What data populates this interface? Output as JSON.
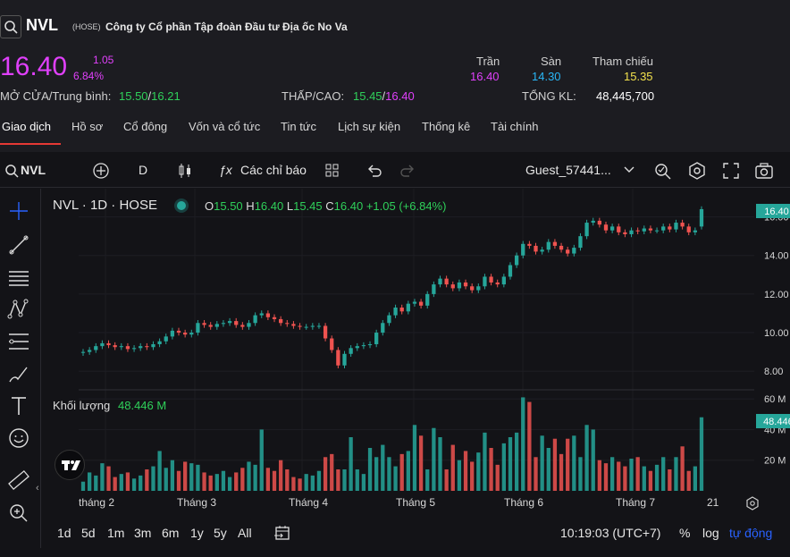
{
  "header": {
    "ticker": "NVL",
    "exchange": "(HOSE)",
    "company": "Công ty Cổ phần Tập đoàn Đầu tư Địa ốc No Va",
    "price": "16.40",
    "change": "1.05",
    "change_pct": "6.84%",
    "open_avg_label": "MỞ CỬA/Trung bình:",
    "open": "15.50",
    "avg": "16.21",
    "low_high_label": "THẤP/CAO:",
    "low": "15.45",
    "high": "16.40",
    "ceiling_label": "Trần",
    "ceiling": "16.40",
    "floor_label": "Sàn",
    "floor": "14.30",
    "ref_label": "Tham chiếu",
    "ref": "15.35",
    "total_vol_label": "TỔNG KL:",
    "total_vol": "48,445,700"
  },
  "tabs": [
    "Giao dịch",
    "Hồ sơ",
    "Cổ đông",
    "Vốn và cổ tức",
    "Tin tức",
    "Lịch sự kiện",
    "Thống kê",
    "Tài chính"
  ],
  "toolbar": {
    "symbol": "NVL",
    "interval": "D",
    "indicators": "Các chỉ báo",
    "user": "Guest_57441..."
  },
  "legend": {
    "title": "NVL · 1D · HOSE",
    "o_label": "O",
    "o": "15.50",
    "h_label": "H",
    "h": "16.40",
    "l_label": "L",
    "l": "15.45",
    "c_label": "C",
    "c": "16.40",
    "chg": "+1.05 (+6.84%)",
    "vol_label": "Khối lượng",
    "vol": "48.446 M"
  },
  "chart_data": {
    "type": "candlestick",
    "price_axis": [
      "16.00",
      "14.00",
      "12.00",
      "10.00",
      "8.00"
    ],
    "price_range": [
      7.5,
      17.0
    ],
    "volume_axis": [
      "60 M",
      "40 M",
      "20 M"
    ],
    "volume_range": [
      0,
      63
    ],
    "last_price_tag": "16.40",
    "last_volume_tag": "48.446 M",
    "x_labels": [
      "tháng 2",
      "Tháng 3",
      "Tháng 4",
      "Tháng 5",
      "Tháng 6",
      "Tháng 7",
      "21"
    ],
    "up_color": "#26a69a",
    "down_color": "#ef5350",
    "closes": [
      9.0,
      9.1,
      9.3,
      9.45,
      9.35,
      9.25,
      9.3,
      9.15,
      9.2,
      9.3,
      9.25,
      9.4,
      9.55,
      9.8,
      10.1,
      10.0,
      9.9,
      10.0,
      10.5,
      10.4,
      10.3,
      10.45,
      10.5,
      10.6,
      10.4,
      10.3,
      10.5,
      10.9,
      11.0,
      10.8,
      10.7,
      10.5,
      10.45,
      10.35,
      10.3,
      10.3,
      10.35,
      10.35,
      9.7,
      9.1,
      8.3,
      8.9,
      9.2,
      9.3,
      9.35,
      9.4,
      10.0,
      10.5,
      10.9,
      11.3,
      11.1,
      11.5,
      11.6,
      11.4,
      12.0,
      12.5,
      12.8,
      12.5,
      12.3,
      12.6,
      12.4,
      12.2,
      12.4,
      12.9,
      12.6,
      12.5,
      12.9,
      13.5,
      14.0,
      14.6,
      14.5,
      14.2,
      14.3,
      14.7,
      14.5,
      14.3,
      14.1,
      14.4,
      15.0,
      15.7,
      15.8,
      15.6,
      15.3,
      15.5,
      15.2,
      15.1,
      15.3,
      15.25,
      15.4,
      15.3,
      15.3,
      15.5,
      15.35,
      15.7,
      15.5,
      15.2,
      15.3,
      16.4
    ],
    "volumes": [
      6,
      12,
      10,
      18,
      16,
      9,
      11,
      12,
      8,
      10,
      14,
      16,
      26,
      15,
      20,
      13,
      19,
      18,
      17,
      12,
      10,
      11,
      13,
      9,
      12,
      15,
      19,
      17,
      40,
      15,
      13,
      20,
      14,
      9,
      8,
      11,
      10,
      13,
      22,
      24,
      14,
      14,
      35,
      14,
      11,
      28,
      22,
      30,
      22,
      16,
      24,
      26,
      43,
      36,
      14,
      41,
      35,
      14,
      30,
      20,
      26,
      19,
      25,
      38,
      28,
      17,
      31,
      35,
      38,
      61,
      58,
      22,
      36,
      28,
      34,
      24,
      34,
      36,
      22,
      43,
      40,
      20,
      18,
      22,
      19,
      16,
      21,
      22,
      16,
      13,
      17,
      22,
      14,
      22,
      29,
      13,
      16,
      48
    ]
  },
  "ranges": [
    "1d",
    "5d",
    "1m",
    "3m",
    "6m",
    "1y",
    "5y",
    "All"
  ],
  "bottom": {
    "time": "10:19:03 (UTC+7)",
    "pct": "%",
    "log": "log",
    "auto": "tự động"
  },
  "colors": {
    "accent": "#e53935",
    "price_up": "#e040fb",
    "green": "#2fd05a",
    "cyan": "#29b6f6",
    "yellow": "#f2e14c",
    "tag": "#26a69a"
  }
}
